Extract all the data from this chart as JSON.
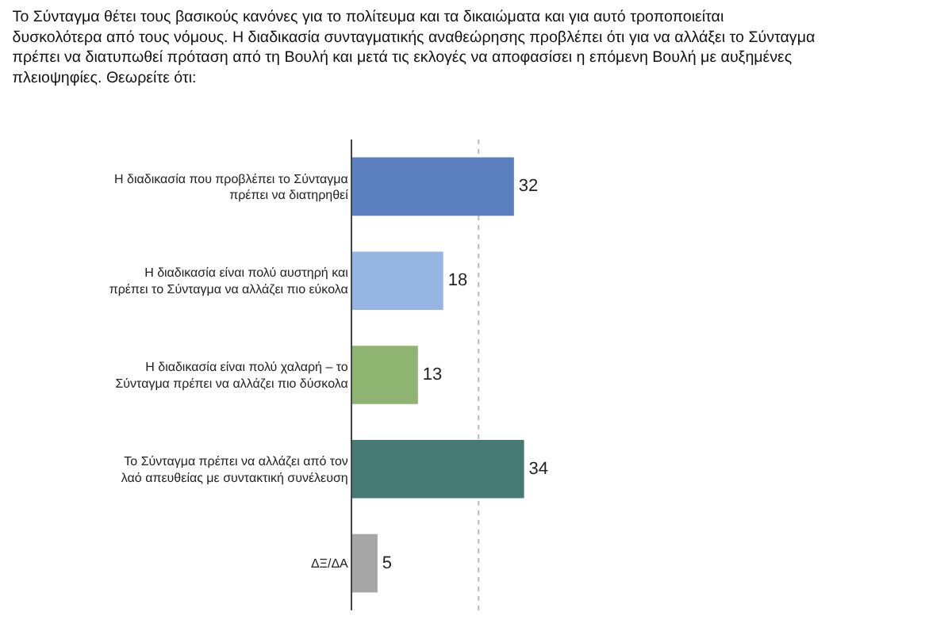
{
  "chart_data": {
    "type": "bar",
    "orientation": "horizontal",
    "title": "Το Σύνταγμα θέτει τους βασικούς κανόνες για το πολίτευμα και τα δικαιώματα και για αυτό τροποποιείται δυσκολότερα από τους νόμους. Η διαδικασία συνταγματικής αναθεώρησης προβλέπει ότι για να αλλάξει το Σύνταγμα πρέπει να διατυπωθεί πρόταση από τη Βουλή και μετά τις εκλογές να αποφασίσει η επόμενη Βουλή με αυξημένες πλειοψηφίες. Θεωρείτε ότι:",
    "categories": [
      "Η διαδικασία που προβλέπει το Σύνταγμα πρέπει να διατηρηθεί",
      "Η διαδικασία είναι πολύ αυστηρή και πρέπει το Σύνταγμα να αλλάζει πιο εύκολα",
      "Η διαδικασία είναι πολύ χαλαρή – το Σύνταγμα πρέπει να αλλάζει πιο δύσκολα",
      "Το Σύνταγμα πρέπει να αλλάζει από τον λαό απευθείας με συντακτική συνέλευση",
      "ΔΞ/ΔΑ"
    ],
    "values": [
      32,
      18,
      13,
      34,
      5
    ],
    "colors": [
      "#5b7fbf",
      "#94b6e0",
      "#8fb370",
      "#477a73",
      "#a6a6a6"
    ],
    "data_labels": true,
    "ref_lines": [
      {
        "axis": "x",
        "value": 25,
        "color": "#bbbbbb",
        "line_style": "dotted"
      }
    ],
    "tick_labels": "y"
  }
}
